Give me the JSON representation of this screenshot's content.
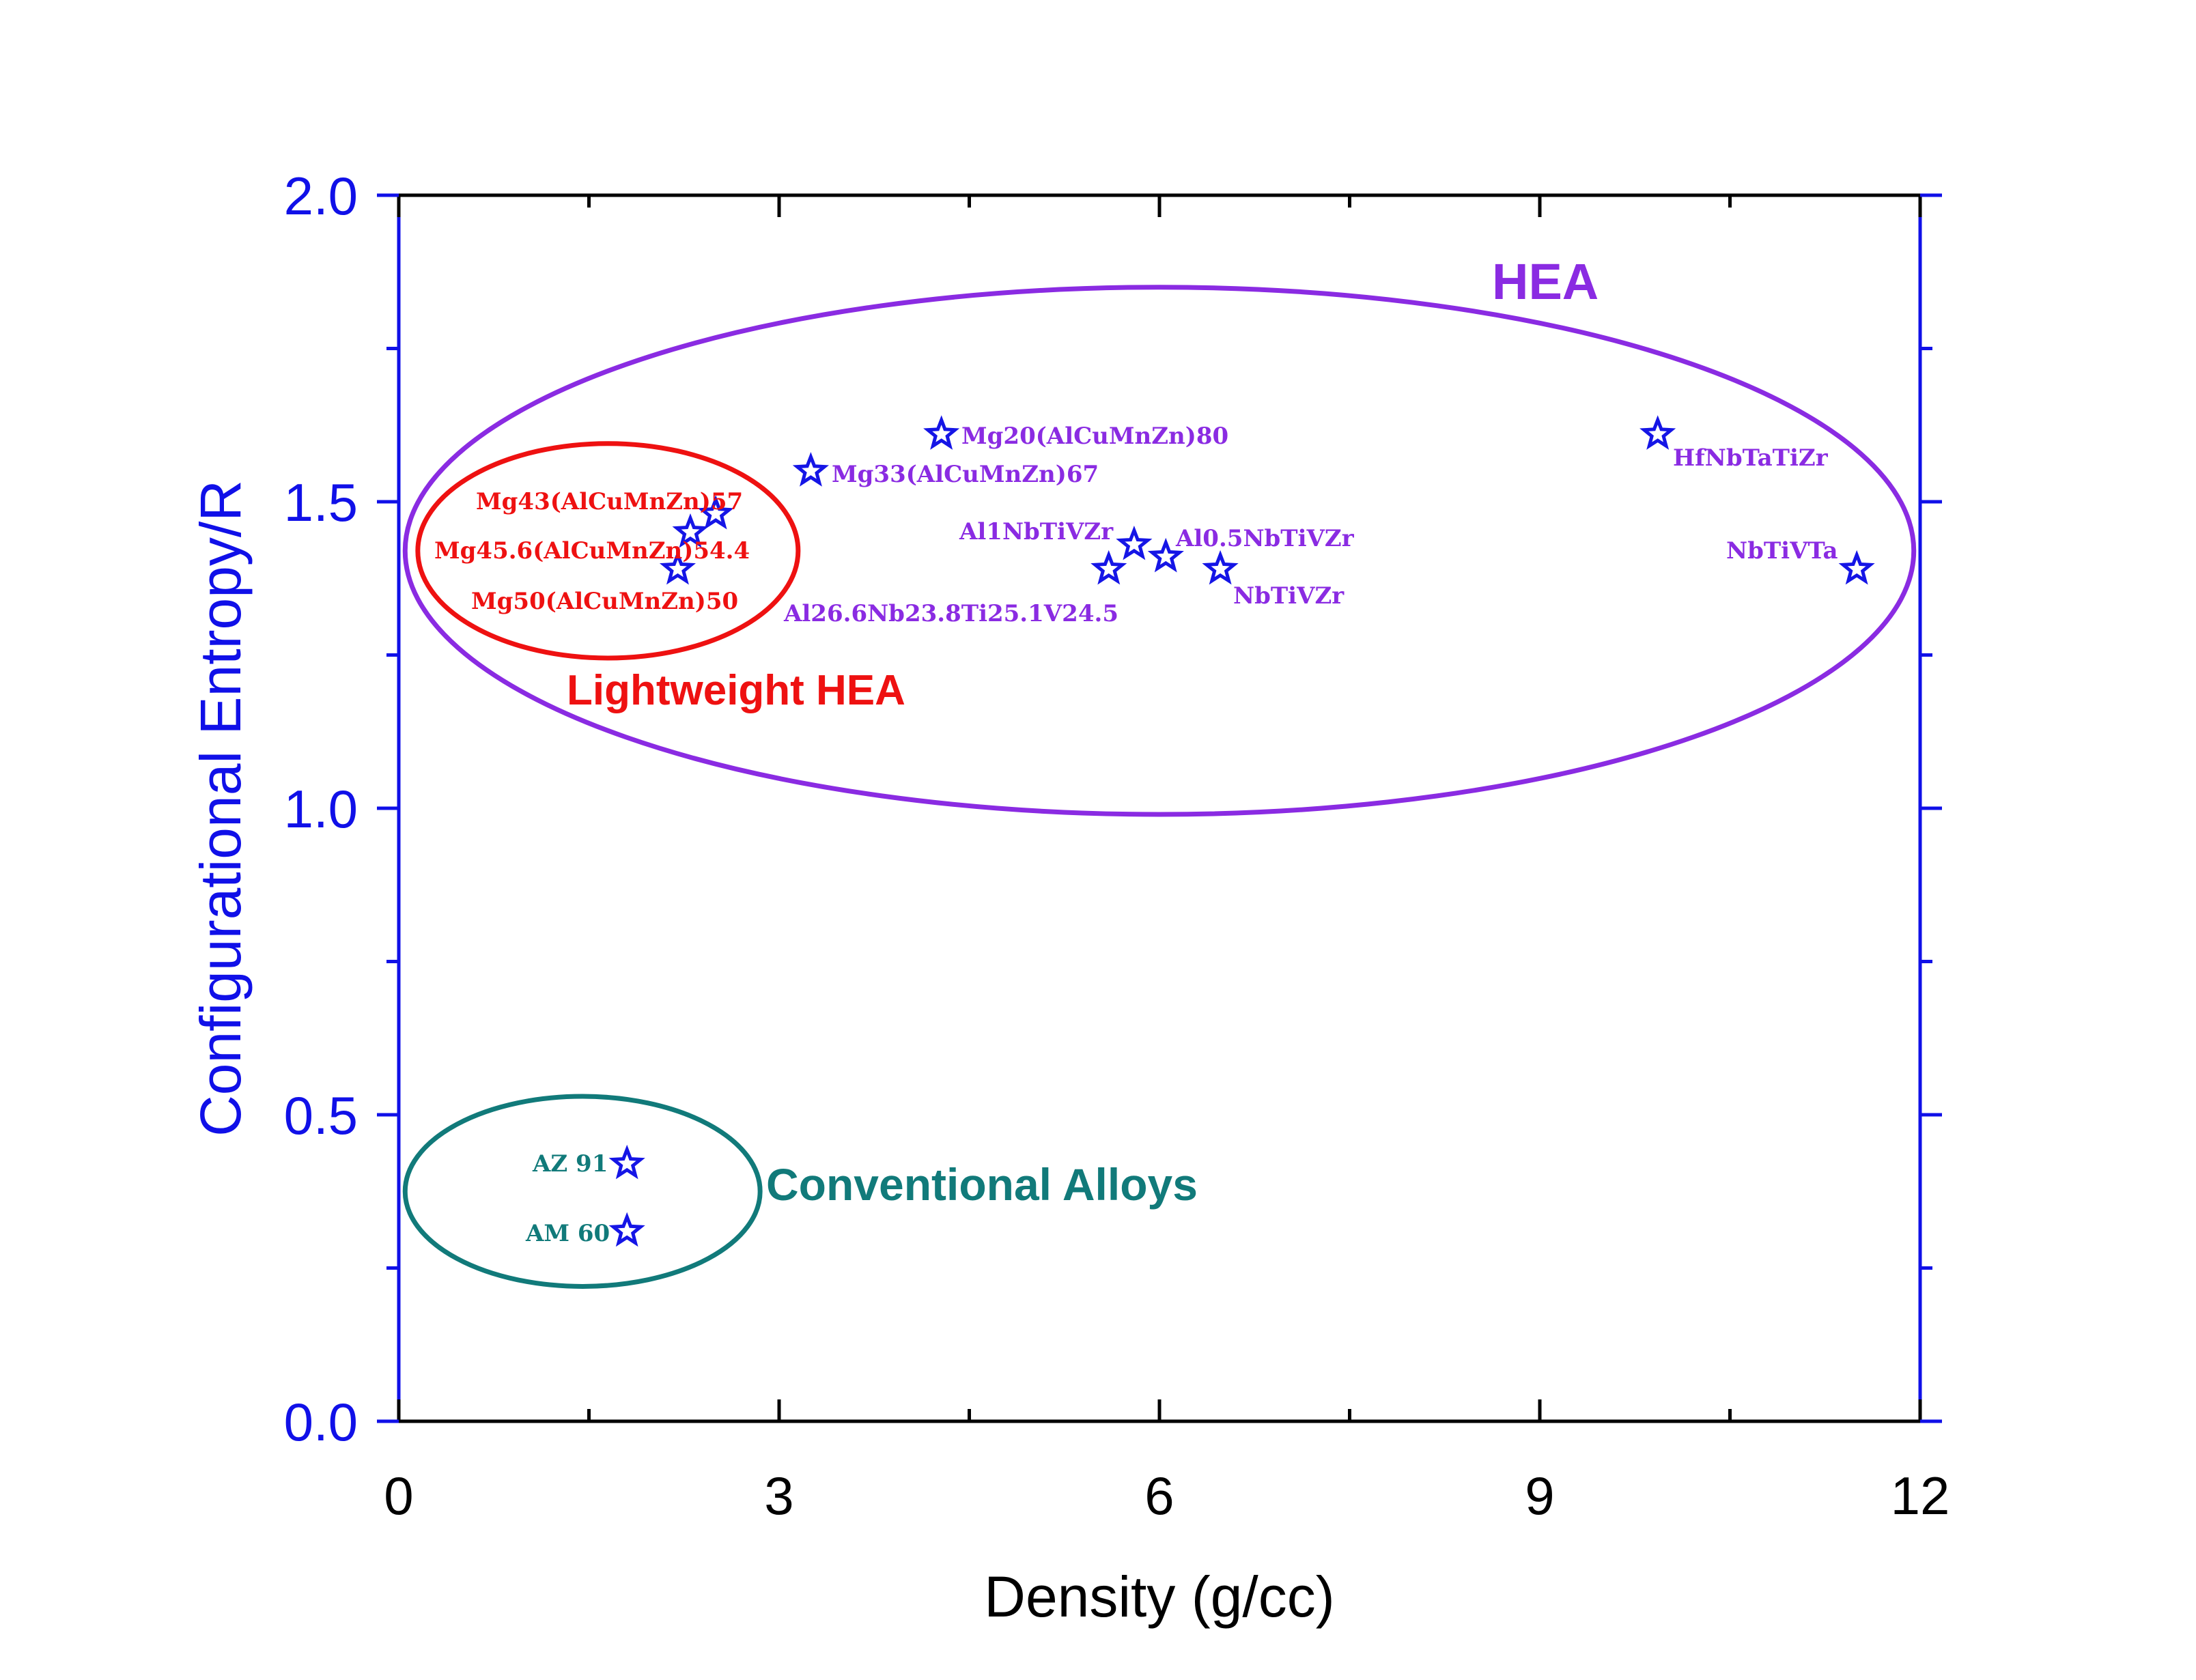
{
  "chart_data": {
    "type": "scatter",
    "xlabel": "Density (g/cc)",
    "ylabel": "Configurational Entropy/R",
    "xlim": [
      0,
      12
    ],
    "ylim": [
      0,
      2.0
    ],
    "x_ticks": [
      "0",
      "3",
      "6",
      "9",
      "12"
    ],
    "y_ticks": [
      "0.0",
      "0.5",
      "1.0",
      "1.5",
      "2.0"
    ],
    "grid": false,
    "colors": {
      "axis_left": "#1010e8",
      "axis_bottom": "#000000",
      "marker": "#1515e6",
      "hea": "#8a2be2",
      "lightweight": "#ee1111",
      "conventional": "#117a7a"
    },
    "groups": [
      {
        "name": "HEA",
        "color": "#8a2be2"
      },
      {
        "name": "Lightweight HEA",
        "color": "#ee1111"
      },
      {
        "name": "Conventional Alloys",
        "color": "#117a7a"
      }
    ],
    "points": [
      {
        "label": "Mg43(AlCuMnZn)57",
        "x": 2.5,
        "y": 1.48,
        "group": "Lightweight HEA"
      },
      {
        "label": "Mg45.6(AlCuMnZn)54.4",
        "x": 2.3,
        "y": 1.45,
        "group": "Lightweight HEA"
      },
      {
        "label": "Mg50(AlCuMnZn)50",
        "x": 2.2,
        "y": 1.39,
        "group": "Lightweight HEA"
      },
      {
        "label": "Mg33(AlCuMnZn)67",
        "x": 3.25,
        "y": 1.55,
        "group": "HEA"
      },
      {
        "label": "Mg20(AlCuMnZn)80",
        "x": 4.28,
        "y": 1.61,
        "group": "HEA"
      },
      {
        "label": "Al26.6Nb23.8Ti25.1V24.5",
        "x": 5.6,
        "y": 1.39,
        "group": "HEA"
      },
      {
        "label": "Al1NbTiVZr",
        "x": 5.8,
        "y": 1.43,
        "group": "HEA"
      },
      {
        "label": "Al0.5NbTiVZr",
        "x": 6.05,
        "y": 1.41,
        "group": "HEA"
      },
      {
        "label": "NbTiVZr",
        "x": 6.48,
        "y": 1.39,
        "group": "HEA"
      },
      {
        "label": "HfNbTaTiZr",
        "x": 9.93,
        "y": 1.61,
        "group": "HEA"
      },
      {
        "label": "NbTiVTa",
        "x": 11.5,
        "y": 1.39,
        "group": "HEA"
      },
      {
        "label": "AZ 91",
        "x": 1.8,
        "y": 0.42,
        "group": "Conventional Alloys"
      },
      {
        "label": "AM 60",
        "x": 1.8,
        "y": 0.31,
        "group": "Conventional Alloys"
      }
    ],
    "regions": [
      {
        "name": "HEA",
        "cx": 6.0,
        "cy": 1.42,
        "rx": 5.95,
        "ry": 0.43,
        "color": "#8a2be2"
      },
      {
        "name": "Lightweight HEA",
        "cx": 1.65,
        "cy": 1.42,
        "rx": 1.5,
        "ry": 0.175,
        "color": "#ee1111"
      },
      {
        "name": "Conventional Alloys",
        "cx": 1.45,
        "cy": 0.375,
        "rx": 1.4,
        "ry": 0.155,
        "color": "#117a7a"
      }
    ]
  }
}
